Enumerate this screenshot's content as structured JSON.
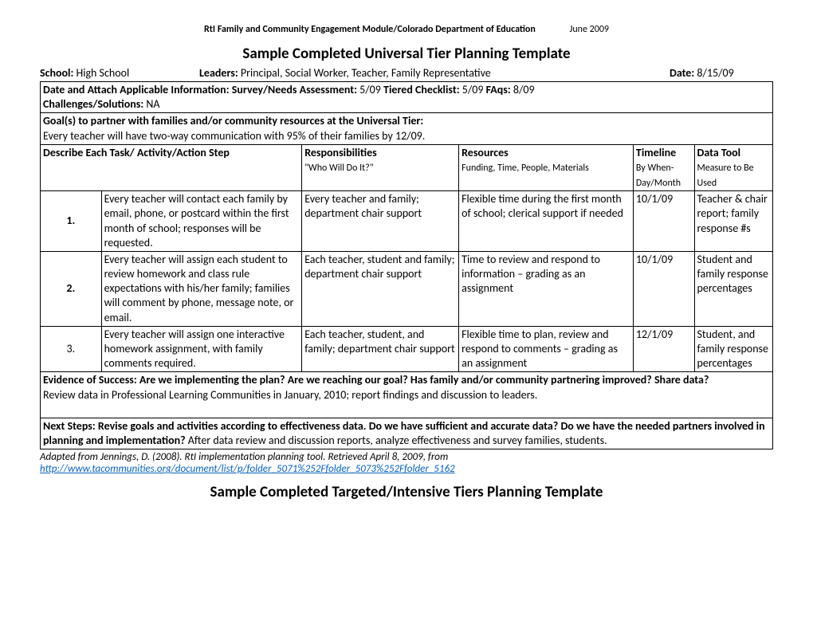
{
  "header": {
    "label": "RtI Family and Community Engagement Module/Colorado Department of Education",
    "date": "June 2009"
  },
  "title1": "Sample Completed Universal Tier Planning Template",
  "meta": {
    "school_label": "School:",
    "school_value": "High  School",
    "leaders_label": "Leaders:",
    "leaders_value": "Principal, Social Worker, Teacher, Family Representative",
    "date_label": "Date:",
    "date_value": "8/15/09"
  },
  "attach": {
    "prefix": "Date and Attach Applicable Information:   Survey/Needs Assessment:",
    "survey": " 5/09 ",
    "tiered_label": "Tiered Checklist:",
    "tiered_value": " 5/09  ",
    "faqs_label": "FAqs:",
    "faqs_value": " 8/09   ",
    "challenges_label": "Challenges/Solutions:",
    "challenges_value": " NA"
  },
  "goals": {
    "label": "Goal(s) to partner with families and/or community resources at the Universal Tier:",
    "text": "Every teacher will have two-way communication with 95% of their families by 12/09."
  },
  "columns": {
    "c1": "Describe Each Task/ Activity/Action Step",
    "c2": "Responsibilities",
    "c2_sub": "\"Who Will Do It?\"",
    "c3": "Resources",
    "c3_sub": "Funding, Time, People, Materials",
    "c4": "Timeline",
    "c4_sub": "By When- Day/Month",
    "c5": "Data Tool",
    "c5_sub": "Measure to Be Used"
  },
  "rows": [
    {
      "num": "1.",
      "task": "Every teacher will contact each family by email, phone, or postcard within the first month of school; responses will be requested.",
      "resp": "Every teacher and family; department chair support",
      "res": "Flexible time during the first month of school; clerical support if needed",
      "time": "10/1/09",
      "tool": "Teacher & chair report; family response #s"
    },
    {
      "num": "2.",
      "task": "Every teacher will assign each student to review homework and class rule expectations with his/her family; families will comment by phone, message note, or email.",
      "resp": "Each teacher, student and family; department chair support",
      "res": "Time to review and respond to information – grading as an assignment",
      "time": "10/1/09",
      "tool": "Student and family response percentages"
    },
    {
      "num": "3.",
      "task": "Every teacher will assign one interactive homework assignment, with family comments required.",
      "resp": "Each teacher, student, and family; department chair support",
      "res": "Flexible time to plan, review and respond to comments – grading as an assignment",
      "time": "12/1/09",
      "tool": "Student, and family response percentages"
    }
  ],
  "evidence": {
    "label": "Evidence of Success: Are we implementing the plan? Are we reaching our goal?  Has family and/or community partnering improved? Share data?",
    "text": "Review data in Professional Learning Communities in January, 2010; report findings and discussion to leaders."
  },
  "next": {
    "label1": "Next Steps:  Revise goals and activities according to effectiveness data. Do we have sufficient and accurate data? Do we",
    "label2": "have the needed partners involved in planning and implementation?",
    "text": " After data review and discussion reports, analyze effectiveness and survey families, students."
  },
  "citation": {
    "text": "Adapted from Jennings, D. (2008). RtI implementation planning tool. Retrieved April 8, 2009, from ",
    "url": "http://www.tacommunities.org/document/list/p/folder_5071%252Ffolder_5073%252Ffolder_5162"
  },
  "title2": "Sample Completed Targeted/Intensive Tiers Planning Template"
}
